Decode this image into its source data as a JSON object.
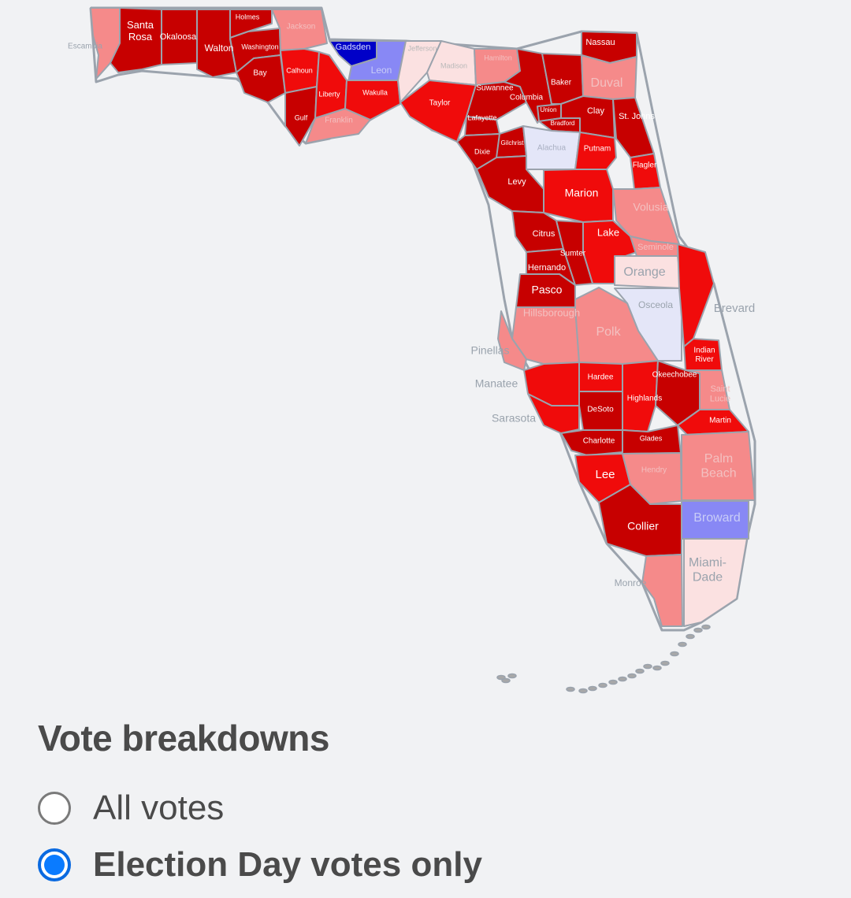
{
  "colors": {
    "dem_strong": "#0000c8",
    "dem_medium": "#8888f5",
    "dem_light": "#e4e6f8",
    "rep_strong": "#c70000",
    "rep_medium": "#f00b0b",
    "rep_light": "#f58a8a",
    "rep_faint": "#fbe1e1",
    "outline": "#9ba3ad"
  },
  "map": {
    "counties": [
      {
        "name": "Escambia",
        "lean": "rep_light"
      },
      {
        "name": "Santa Rosa",
        "lean": "rep_strong"
      },
      {
        "name": "Okaloosa",
        "lean": "rep_strong"
      },
      {
        "name": "Walton",
        "lean": "rep_strong"
      },
      {
        "name": "Holmes",
        "lean": "rep_strong"
      },
      {
        "name": "Washington",
        "lean": "rep_strong"
      },
      {
        "name": "Jackson",
        "lean": "rep_light"
      },
      {
        "name": "Bay",
        "lean": "rep_strong"
      },
      {
        "name": "Calhoun",
        "lean": "rep_medium"
      },
      {
        "name": "Gulf",
        "lean": "rep_strong"
      },
      {
        "name": "Liberty",
        "lean": "rep_medium"
      },
      {
        "name": "Franklin",
        "lean": "rep_light"
      },
      {
        "name": "Gadsden",
        "lean": "dem_strong"
      },
      {
        "name": "Leon",
        "lean": "dem_medium"
      },
      {
        "name": "Wakulla",
        "lean": "rep_medium"
      },
      {
        "name": "Jefferson",
        "lean": "rep_faint"
      },
      {
        "name": "Madison",
        "lean": "rep_faint"
      },
      {
        "name": "Hamilton",
        "lean": "rep_light"
      },
      {
        "name": "Taylor",
        "lean": "rep_medium"
      },
      {
        "name": "Suwannee",
        "lean": "rep_strong"
      },
      {
        "name": "Columbia",
        "lean": "rep_strong"
      },
      {
        "name": "Lafayette",
        "lean": "rep_strong"
      },
      {
        "name": "Dixie",
        "lean": "rep_strong"
      },
      {
        "name": "Gilchrist",
        "lean": "rep_strong"
      },
      {
        "name": "Union",
        "lean": "rep_strong"
      },
      {
        "name": "Bradford",
        "lean": "rep_strong"
      },
      {
        "name": "Baker",
        "lean": "rep_strong"
      },
      {
        "name": "Nassau",
        "lean": "rep_strong"
      },
      {
        "name": "Duval",
        "lean": "rep_light"
      },
      {
        "name": "Clay",
        "lean": "rep_strong"
      },
      {
        "name": "St. Johns",
        "lean": "rep_strong"
      },
      {
        "name": "Alachua",
        "lean": "dem_light"
      },
      {
        "name": "Putnam",
        "lean": "rep_medium"
      },
      {
        "name": "Flagler",
        "lean": "rep_medium"
      },
      {
        "name": "Levy",
        "lean": "rep_strong"
      },
      {
        "name": "Marion",
        "lean": "rep_medium"
      },
      {
        "name": "Volusia",
        "lean": "rep_light"
      },
      {
        "name": "Citrus",
        "lean": "rep_strong"
      },
      {
        "name": "Lake",
        "lean": "rep_medium"
      },
      {
        "name": "Sumter",
        "lean": "rep_strong"
      },
      {
        "name": "Seminole",
        "lean": "rep_light"
      },
      {
        "name": "Hernando",
        "lean": "rep_strong"
      },
      {
        "name": "Orange",
        "lean": "rep_faint"
      },
      {
        "name": "Pasco",
        "lean": "rep_strong"
      },
      {
        "name": "Osceola",
        "lean": "dem_light"
      },
      {
        "name": "Brevard",
        "lean": "rep_medium"
      },
      {
        "name": "Hillsborough",
        "lean": "rep_light"
      },
      {
        "name": "Polk",
        "lean": "rep_light"
      },
      {
        "name": "Pinellas",
        "lean": "rep_light"
      },
      {
        "name": "Indian River",
        "lean": "rep_medium"
      },
      {
        "name": "Manatee",
        "lean": "rep_medium"
      },
      {
        "name": "Hardee",
        "lean": "rep_medium"
      },
      {
        "name": "Highlands",
        "lean": "rep_medium"
      },
      {
        "name": "Okeechobee",
        "lean": "rep_strong"
      },
      {
        "name": "St. Lucie",
        "lean": "rep_light"
      },
      {
        "name": "Sarasota",
        "lean": "rep_medium"
      },
      {
        "name": "DeSoto",
        "lean": "rep_strong"
      },
      {
        "name": "Martin",
        "lean": "rep_medium"
      },
      {
        "name": "Charlotte",
        "lean": "rep_strong"
      },
      {
        "name": "Glades",
        "lean": "rep_strong"
      },
      {
        "name": "Palm Beach",
        "lean": "rep_light"
      },
      {
        "name": "Lee",
        "lean": "rep_medium"
      },
      {
        "name": "Hendry",
        "lean": "rep_light"
      },
      {
        "name": "Broward",
        "lean": "dem_medium"
      },
      {
        "name": "Collier",
        "lean": "rep_strong"
      },
      {
        "name": "Miami-Dade",
        "lean": "rep_faint"
      },
      {
        "name": "Monroe",
        "lean": "rep_light"
      }
    ]
  },
  "breakdowns": {
    "title": "Vote breakdowns",
    "options": [
      {
        "label": "All votes",
        "selected": false
      },
      {
        "label": "Election Day votes only",
        "selected": true
      }
    ]
  }
}
